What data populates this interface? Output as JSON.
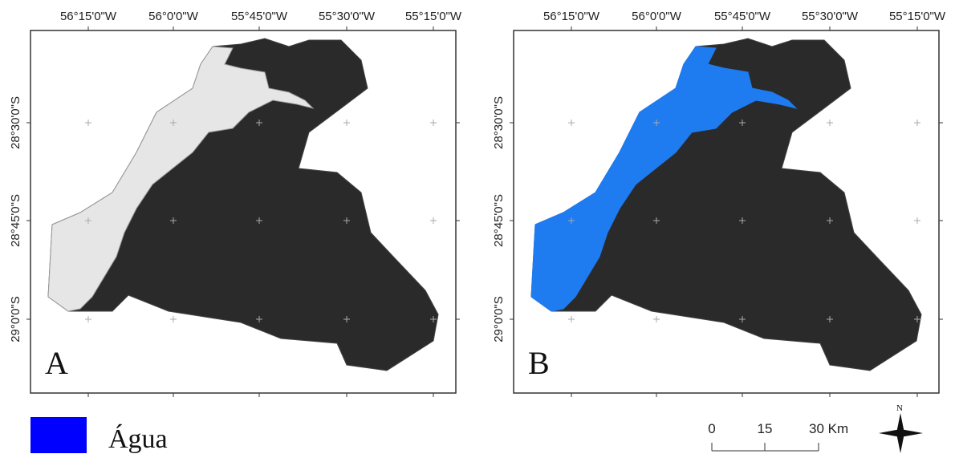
{
  "panels": [
    {
      "label": "A",
      "x_labels": [
        "56°15'0\"W",
        "56°0'0\"W",
        "55°45'0\"W",
        "55°30'0\"W",
        "55°15'0\"W"
      ],
      "y_labels": [
        "28°30'0\"S",
        "28°45'0\"S",
        "29°0'0\"S"
      ]
    },
    {
      "label": "B",
      "x_labels": [
        "56°15'0\"W",
        "56°0'0\"W",
        "55°45'0\"W",
        "55°30'0\"W",
        "55°15'0\"W"
      ],
      "y_labels": [
        "28°30'0\"S",
        "28°45'0\"S",
        "29°0'0\"S"
      ]
    }
  ],
  "legend": {
    "label": "Água",
    "color": "#0000ff"
  },
  "scale_bar": {
    "labels": [
      "0",
      "15",
      "30 Km"
    ]
  },
  "north_arrow": {
    "label": "N"
  }
}
